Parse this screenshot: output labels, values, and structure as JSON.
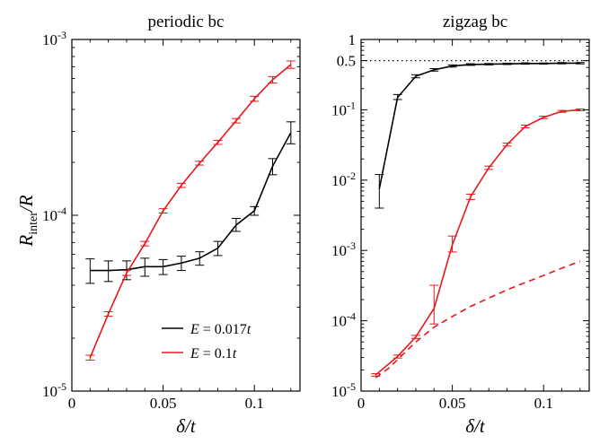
{
  "chart_data": [
    {
      "type": "line",
      "title": "periodic bc",
      "xlabel": "δ/t",
      "ylabel_main": "R",
      "ylabel_sub": "inter",
      "ylabel_tail": "/R",
      "yscale": "log",
      "xlim": [
        0,
        0.125
      ],
      "ylim": [
        1e-05,
        0.001
      ],
      "xticks": [
        0,
        0.05,
        0.1
      ],
      "xtick_labels": [
        "0",
        "0.05",
        "0.1"
      ],
      "yticks": [
        {
          "value": 1e-05,
          "base": "10",
          "exp": "-5"
        },
        {
          "value": 0.0001,
          "base": "10",
          "exp": "-4"
        },
        {
          "value": 0.001,
          "base": "10",
          "exp": "-3"
        }
      ],
      "legend": {
        "position": "lower-right"
      },
      "series": [
        {
          "name_var": "E",
          "name_eq": " = 0.017",
          "name_unit": "t",
          "color": "#000000",
          "x": [
            0.01,
            0.02,
            0.03,
            0.04,
            0.05,
            0.06,
            0.07,
            0.08,
            0.09,
            0.1,
            0.11,
            0.12
          ],
          "y": [
            4.85e-05,
            4.85e-05,
            4.9e-05,
            5.1e-05,
            5.1e-05,
            5.35e-05,
            5.7e-05,
            6.5e-05,
            8.8e-05,
            0.000106,
            0.00019,
            0.000295
          ],
          "err_lo": [
            4.1e-05,
            4.2e-05,
            4.3e-05,
            4.5e-05,
            4.6e-05,
            4.85e-05,
            5.2e-05,
            5.9e-05,
            8.1e-05,
            0.0001,
            0.00017,
            0.000255
          ],
          "err_hi": [
            5.65e-05,
            5.5e-05,
            5.5e-05,
            5.7e-05,
            5.6e-05,
            5.85e-05,
            6.2e-05,
            7.1e-05,
            9.6e-05,
            0.000112,
            0.00021,
            0.00034
          ]
        },
        {
          "name_var": "E",
          "name_eq": " = 0.1",
          "name_unit": "t",
          "color": "#e8171c",
          "x": [
            0.01,
            0.02,
            0.03,
            0.04,
            0.05,
            0.06,
            0.07,
            0.08,
            0.09,
            0.1,
            0.11,
            0.12
          ],
          "y": [
            1.55e-05,
            2.75e-05,
            4.7e-05,
            6.9e-05,
            0.000106,
            0.000148,
            0.000198,
            0.00026,
            0.000345,
            0.00046,
            0.00059,
            0.00072
          ],
          "err_lo": [
            1.5e-05,
            2.67e-05,
            4.55e-05,
            6.7e-05,
            0.000103,
            0.000144,
            0.000193,
            0.000253,
            0.000335,
            0.000445,
            0.000565,
            0.000685
          ],
          "err_hi": [
            1.6e-05,
            2.83e-05,
            4.85e-05,
            7.1e-05,
            0.000109,
            0.000152,
            0.000203,
            0.000267,
            0.000355,
            0.000475,
            0.000615,
            0.000755
          ]
        }
      ]
    },
    {
      "type": "line",
      "title": "zigzag bc",
      "xlabel": "δ/t",
      "yscale": "log",
      "xlim": [
        0,
        0.125
      ],
      "ylim": [
        1e-05,
        1
      ],
      "xticks": [
        0,
        0.05,
        0.1
      ],
      "xtick_labels": [
        "0",
        "0.05",
        "0.1"
      ],
      "yticks": [
        {
          "value": 1e-05,
          "base": "10",
          "exp": "-5"
        },
        {
          "value": 0.0001,
          "base": "10",
          "exp": "-4"
        },
        {
          "value": 0.001,
          "base": "10",
          "exp": "-3"
        },
        {
          "value": 0.01,
          "base": "10",
          "exp": "-2"
        },
        {
          "value": 0.1,
          "base": "10",
          "exp": "-1"
        },
        {
          "value": 0.5,
          "plain": "0.5"
        },
        {
          "value": 1,
          "plain": "1"
        }
      ],
      "reference_line": {
        "y": 0.5,
        "style": "dotted"
      },
      "series": [
        {
          "color": "#000000",
          "x": [
            0.01,
            0.02,
            0.03,
            0.04,
            0.05,
            0.06,
            0.07,
            0.08,
            0.09,
            0.1,
            0.11,
            0.12
          ],
          "y": [
            0.0075,
            0.15,
            0.3,
            0.37,
            0.42,
            0.44,
            0.445,
            0.45,
            0.455,
            0.455,
            0.46,
            0.46
          ],
          "err_lo": [
            0.004,
            0.14,
            0.285,
            0.355,
            0.405,
            0.428,
            0.435,
            0.44,
            0.445,
            0.447,
            0.45,
            0.45
          ],
          "err_hi": [
            0.012,
            0.165,
            0.315,
            0.385,
            0.435,
            0.452,
            0.455,
            0.46,
            0.465,
            0.463,
            0.47,
            0.47
          ]
        },
        {
          "color": "#e8171c",
          "x": [
            0.008,
            0.02,
            0.03,
            0.04,
            0.05,
            0.06,
            0.07,
            0.08,
            0.09,
            0.1,
            0.11,
            0.12
          ],
          "y": [
            1.7e-05,
            3.1e-05,
            5.9e-05,
            0.00015,
            0.0012,
            0.0058,
            0.015,
            0.032,
            0.058,
            0.078,
            0.095,
            0.1
          ],
          "err_lo": [
            1.63e-05,
            2.95e-05,
            5.6e-05,
            9e-05,
            0.00095,
            0.0053,
            0.0142,
            0.0305,
            0.0555,
            0.075,
            0.092,
            0.097
          ],
          "err_hi": [
            1.77e-05,
            3.25e-05,
            6.2e-05,
            0.00032,
            0.0016,
            0.0063,
            0.0158,
            0.0335,
            0.0605,
            0.081,
            0.098,
            0.103
          ]
        },
        {
          "color": "#e8171c",
          "dashed": true,
          "x": [
            0.008,
            0.015,
            0.02,
            0.03,
            0.04,
            0.05,
            0.06,
            0.07,
            0.08,
            0.09,
            0.1,
            0.11,
            0.12
          ],
          "y": [
            1.55e-05,
            2.1e-05,
            2.8e-05,
            5e-05,
            8.1e-05,
            0.000115,
            0.00016,
            0.00021,
            0.000275,
            0.00035,
            0.00044,
            0.00056,
            0.0007
          ]
        }
      ]
    }
  ]
}
